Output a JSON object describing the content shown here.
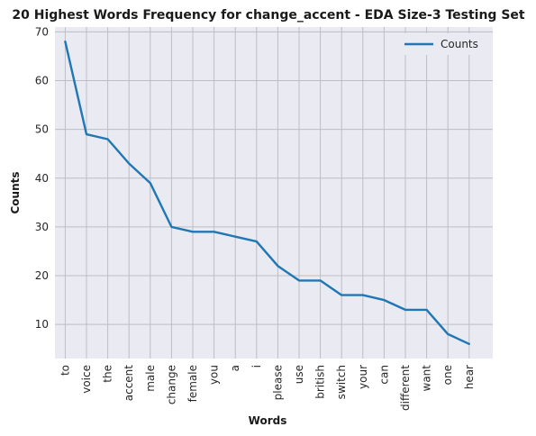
{
  "chart_data": {
    "type": "line",
    "title": "20 Highest Words Frequency for change_accent - EDA Size-3 Testing Set",
    "xlabel": "Words",
    "ylabel": "Counts",
    "categories": [
      "to",
      "voice",
      "the",
      "accent",
      "male",
      "change",
      "female",
      "you",
      "a",
      "i",
      "please",
      "use",
      "british",
      "switch",
      "your",
      "can",
      "different",
      "want",
      "one",
      "hear"
    ],
    "series": [
      {
        "name": "Counts",
        "values": [
          68,
          49,
          48,
          43,
          39,
          30,
          29,
          29,
          28,
          27,
          22,
          19,
          19,
          16,
          16,
          15,
          13,
          13,
          8,
          6
        ],
        "color": "#1f77b4"
      }
    ],
    "ylim": [
      3,
      71
    ],
    "yticks": [
      10,
      20,
      30,
      40,
      50,
      60,
      70
    ],
    "grid": true,
    "legend": "top-right",
    "background": "#eaeaf2",
    "grid_color": "#bdbdc4"
  }
}
